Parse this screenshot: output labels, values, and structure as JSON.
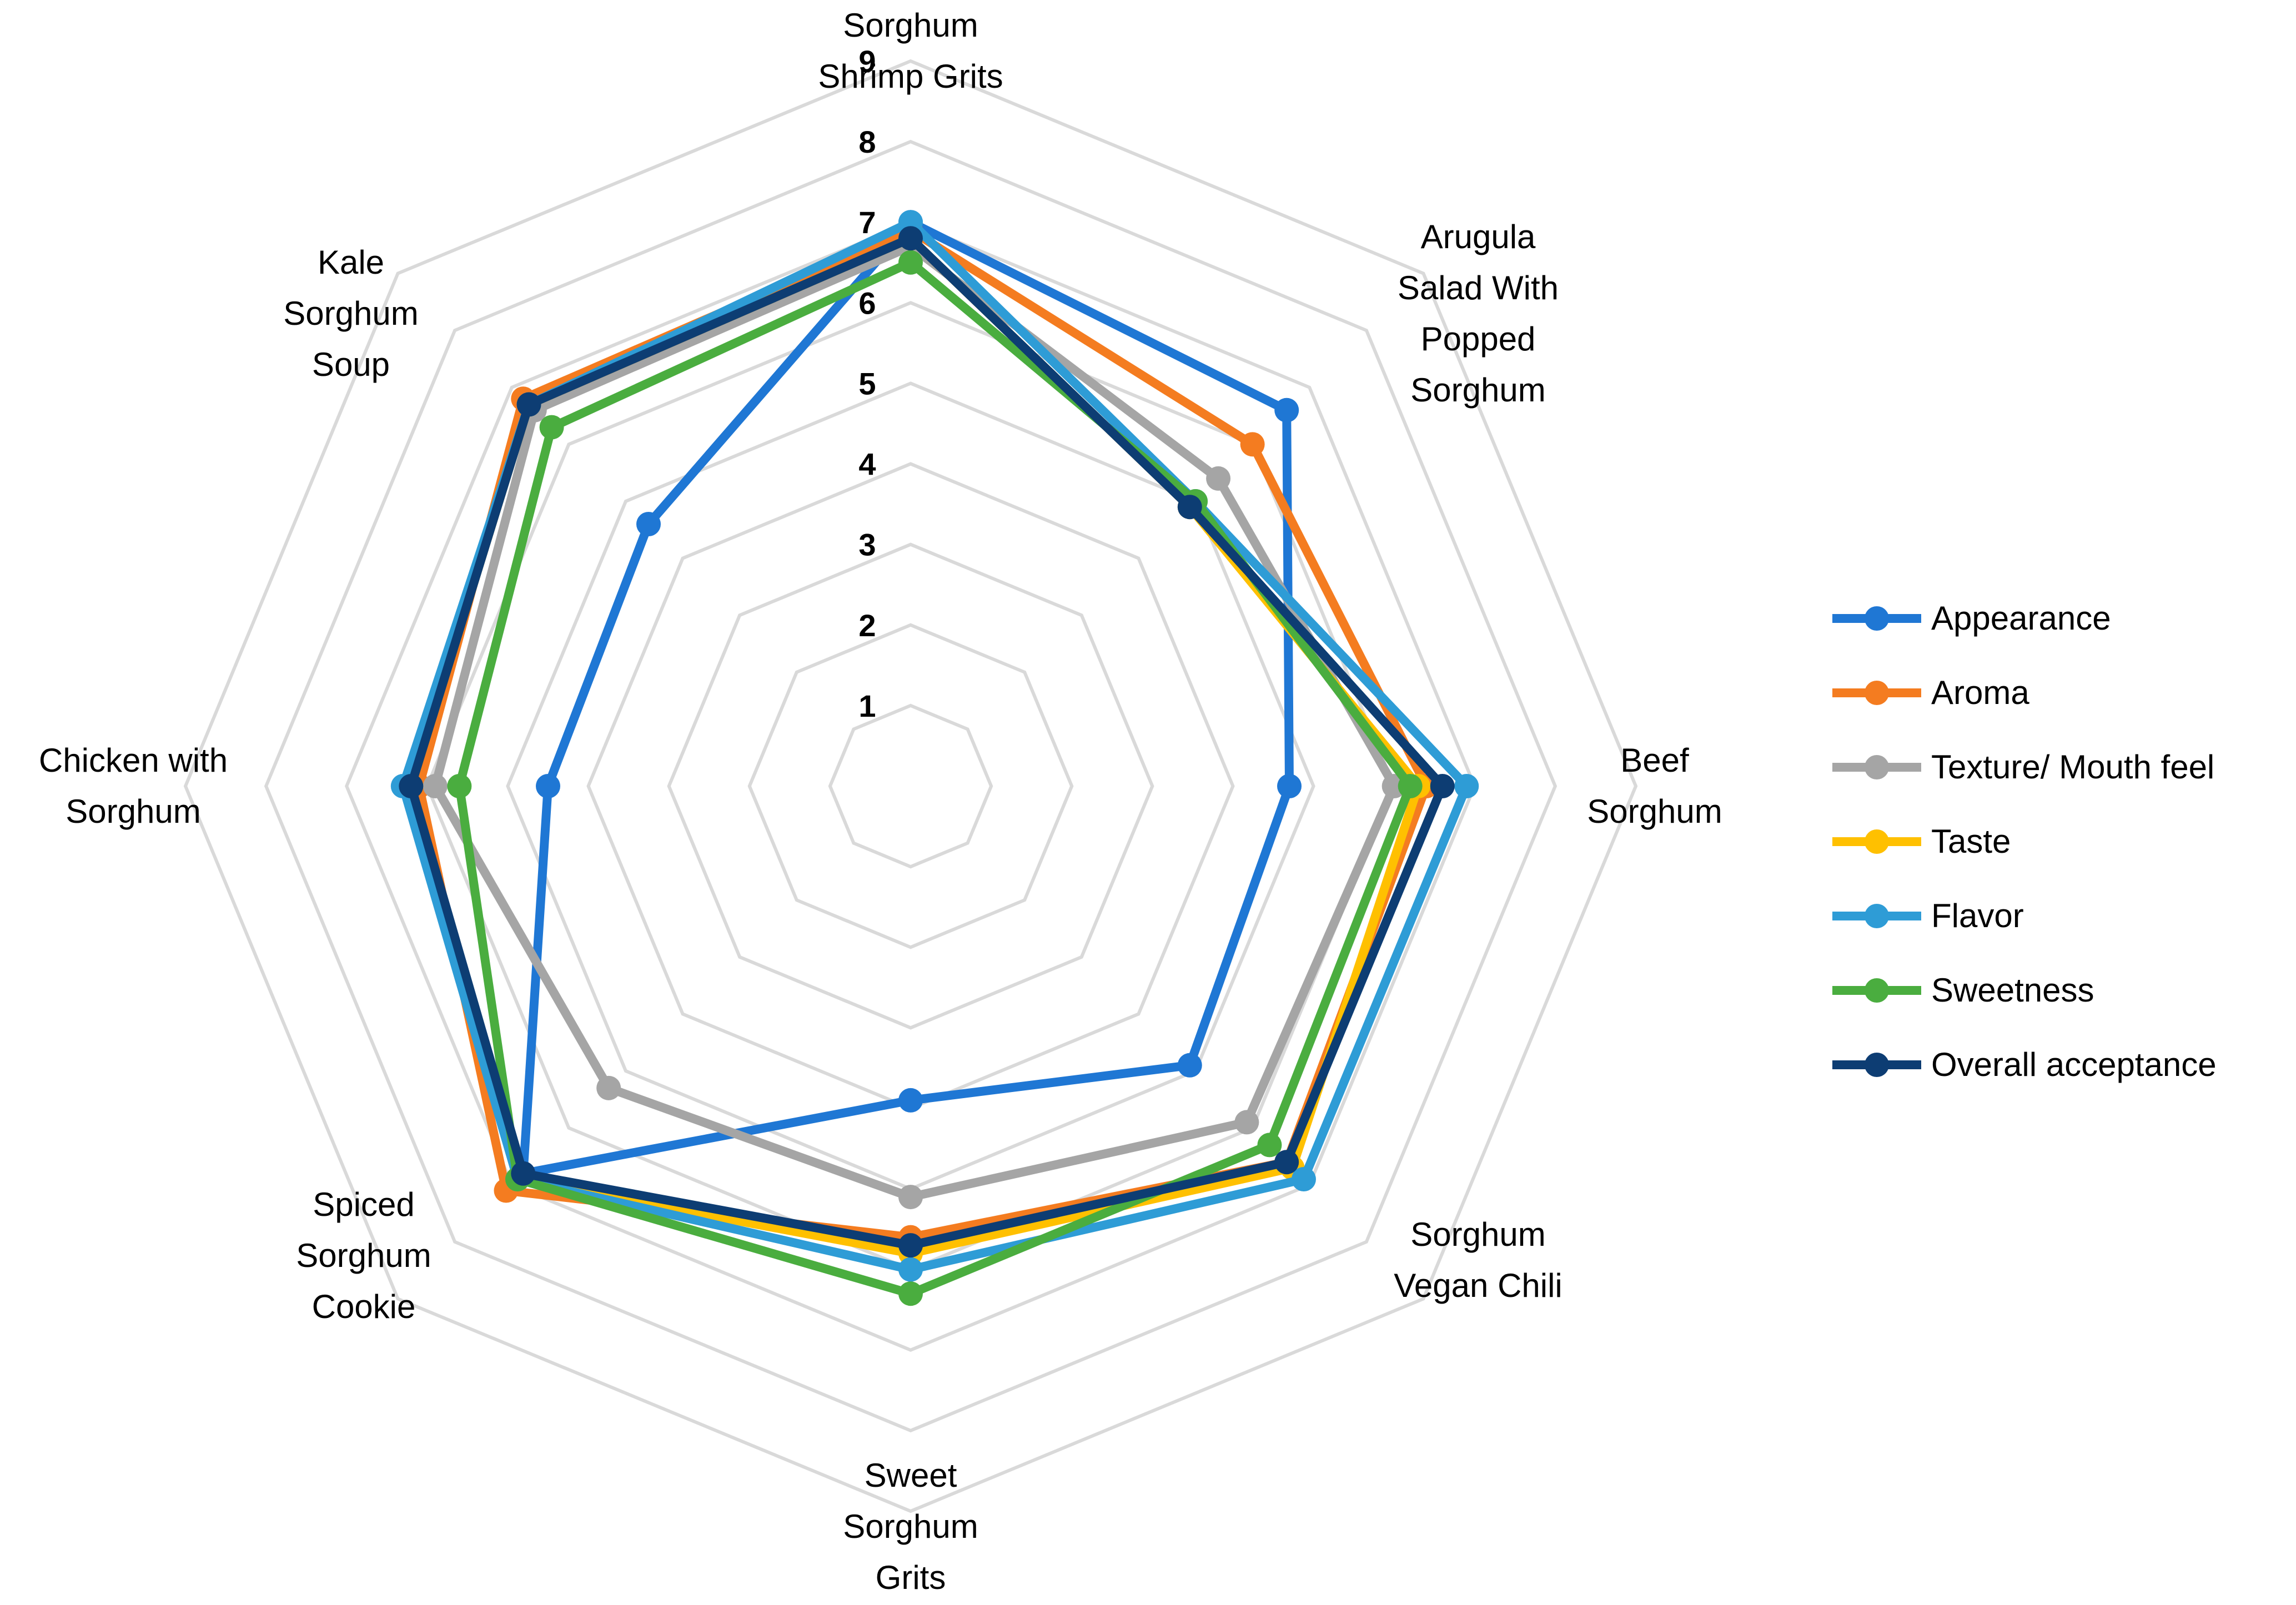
{
  "chart_data": {
    "type": "radar",
    "title": "",
    "categories": [
      "Sorghum Shrimp Grits",
      "Arugula Salad With Popped Sorghum",
      "Beef Sorghum",
      "Sorghum Vegan Chili",
      "Sweet Sorghum Grits",
      "Spiced Sorghum Cookie",
      "Chicken with Sorghum",
      "Kale Sorghum Soup"
    ],
    "category_label_lines": [
      [
        "Sorghum",
        "Shrimp Grits"
      ],
      [
        "Arugula",
        "Salad With",
        "Popped",
        "Sorghum"
      ],
      [
        "Beef",
        "Sorghum"
      ],
      [
        "Sorghum",
        "Vegan Chili"
      ],
      [
        "Sweet",
        "Sorghum",
        "Grits"
      ],
      [
        "Spiced",
        "Sorghum",
        "Cookie"
      ],
      [
        "Chicken with",
        "Sorghum"
      ],
      [
        "Kale",
        "Sorghum",
        "Soup"
      ]
    ],
    "rlim": [
      0,
      9
    ],
    "ticks": [
      1,
      2,
      3,
      4,
      5,
      6,
      7,
      8,
      9
    ],
    "legend_position": "right",
    "series": [
      {
        "name": "Appearance",
        "color": "#1f77d4",
        "values": [
          7.0,
          6.6,
          4.7,
          4.9,
          3.9,
          6.8,
          4.5,
          4.6
        ]
      },
      {
        "name": "Aroma",
        "color": "#f47c20",
        "values": [
          6.9,
          6.0,
          6.4,
          6.6,
          5.6,
          7.1,
          6.1,
          6.8
        ]
      },
      {
        "name": "Texture/ Mouth feel",
        "color": "#a5a5a5",
        "values": [
          6.7,
          5.4,
          6.0,
          5.9,
          5.1,
          5.3,
          5.9,
          6.6
        ]
      },
      {
        "name": "Taste",
        "color": "#ffc000",
        "values": [
          6.8,
          4.9,
          6.3,
          6.7,
          5.8,
          6.9,
          6.2,
          6.7
        ]
      },
      {
        "name": "Flavor",
        "color": "#2e9cd6",
        "values": [
          7.0,
          5.0,
          6.9,
          6.9,
          6.0,
          6.9,
          6.3,
          6.7
        ]
      },
      {
        "name": "Sweetness",
        "color": "#4aad3f",
        "values": [
          6.5,
          5.0,
          6.2,
          6.3,
          6.3,
          6.9,
          5.6,
          6.3
        ]
      },
      {
        "name": "Overall acceptance",
        "color": "#0d3d73",
        "values": [
          6.8,
          4.9,
          6.6,
          6.6,
          5.7,
          6.8,
          6.2,
          6.7
        ]
      }
    ]
  }
}
